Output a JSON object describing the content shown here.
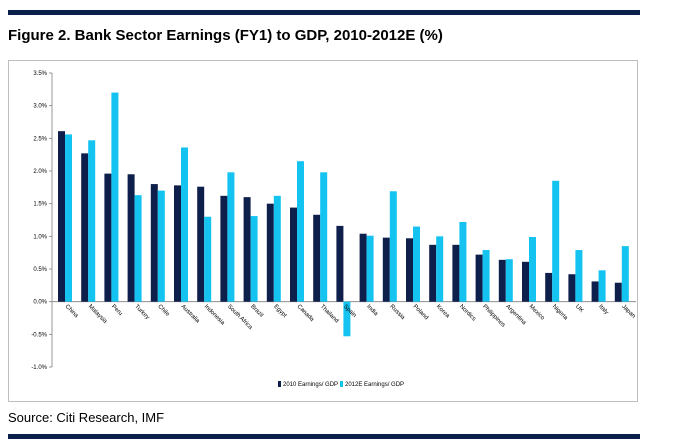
{
  "figure": {
    "title": "Figure 2. Bank Sector Earnings (FY1) to GDP, 2010-2012E (%)",
    "source": "Source: Citi Research, IMF"
  },
  "colors": {
    "rule": "#0b1f4d",
    "series_2010": "#0f1f4b",
    "series_2012": "#14c3f0"
  },
  "chart_data": {
    "type": "bar",
    "ylim": [
      -1.0,
      3.5
    ],
    "yticks": [
      "3.5%",
      "3.0%",
      "2.5%",
      "2.0%",
      "1.5%",
      "1.0%",
      "0.5%",
      "0.0%",
      "-0.5%",
      "-1.0%"
    ],
    "ytick_values": [
      3.5,
      3.0,
      2.5,
      2.0,
      1.5,
      1.0,
      0.5,
      0.0,
      -0.5,
      -1.0
    ],
    "grid": false,
    "legend_position": "bottom-center",
    "categories": [
      "China",
      "Malaysia",
      "Peru",
      "Turkey",
      "Chile",
      "Australia",
      "Indonesia",
      "South Africa",
      "Brazil",
      "Egypt",
      "Canada",
      "Thailand",
      "Spain",
      "India",
      "Russia",
      "Poland",
      "Korea",
      "Nordics",
      "Philippines",
      "Argentina",
      "Mexico",
      "Nigeria",
      "UK",
      "Italy",
      "Japan"
    ],
    "series": [
      {
        "name": "2010 Earnings/ GDP",
        "values": [
          2.61,
          2.27,
          1.96,
          1.95,
          1.8,
          1.78,
          1.76,
          1.62,
          1.6,
          1.5,
          1.44,
          1.33,
          1.16,
          1.04,
          0.98,
          0.97,
          0.87,
          0.87,
          0.72,
          0.64,
          0.61,
          0.44,
          0.42,
          0.31,
          0.29
        ]
      },
      {
        "name": "2012E Earnings/ GDP",
        "values": [
          2.56,
          2.47,
          3.2,
          1.63,
          1.7,
          2.36,
          1.3,
          1.98,
          1.31,
          1.62,
          2.15,
          1.98,
          -0.53,
          1.01,
          1.69,
          1.15,
          1.0,
          1.22,
          0.79,
          0.65,
          0.99,
          1.85,
          0.79,
          0.48,
          0.85
        ]
      }
    ]
  }
}
